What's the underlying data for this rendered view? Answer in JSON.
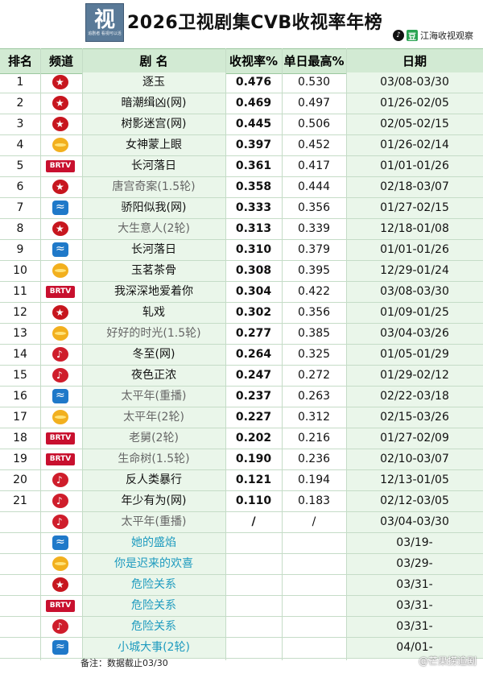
{
  "header": {
    "title": "2026卫视剧集CVB收视率年榜",
    "logo_glyph": "视",
    "logo_sub": "追剧者 看视可以活",
    "brand": "江海收视观察",
    "brand_tiktok_icon": "tiktok-icon",
    "brand_douban_icon": "douban-icon",
    "brand_douban_glyph": "豆"
  },
  "columns": {
    "rank": "排名",
    "channel": "频道",
    "title": "剧  名",
    "rate": "收视率%",
    "peak": "单日最高%",
    "date": "日期"
  },
  "rows": [
    {
      "rank": "1",
      "channel": "dragon-tv",
      "title": "逐玉",
      "style": "normal",
      "rate": "0.476",
      "peak": "0.530",
      "date": "03/08-03/30"
    },
    {
      "rank": "2",
      "channel": "dragon-tv",
      "title": "暗潮缉凶(网)",
      "style": "normal",
      "rate": "0.469",
      "peak": "0.497",
      "date": "01/26-02/05"
    },
    {
      "rank": "3",
      "channel": "dragon-tv",
      "title": "树影迷宫(网)",
      "style": "normal",
      "rate": "0.445",
      "peak": "0.506",
      "date": "02/05-02/15"
    },
    {
      "rank": "4",
      "channel": "hunan-tv",
      "title": "女神蒙上眼",
      "style": "normal",
      "rate": "0.397",
      "peak": "0.452",
      "date": "01/26-02/14"
    },
    {
      "rank": "5",
      "channel": "btv",
      "title": "长河落日",
      "style": "normal",
      "rate": "0.361",
      "peak": "0.417",
      "date": "01/01-01/26"
    },
    {
      "rank": "6",
      "channel": "dragon-tv",
      "title": "唐宫奇案(1.5轮)",
      "style": "muted",
      "rate": "0.358",
      "peak": "0.444",
      "date": "02/18-03/07"
    },
    {
      "rank": "7",
      "channel": "zhejiang-tv",
      "title": "骄阳似我(网)",
      "style": "normal",
      "rate": "0.333",
      "peak": "0.356",
      "date": "01/27-02/15"
    },
    {
      "rank": "8",
      "channel": "dragon-tv",
      "title": "大生意人(2轮)",
      "style": "muted",
      "rate": "0.313",
      "peak": "0.339",
      "date": "12/18-01/08"
    },
    {
      "rank": "9",
      "channel": "zhejiang-tv",
      "title": "长河落日",
      "style": "normal",
      "rate": "0.310",
      "peak": "0.379",
      "date": "01/01-01/26"
    },
    {
      "rank": "10",
      "channel": "hunan-tv",
      "title": "玉茗茶骨",
      "style": "normal",
      "rate": "0.308",
      "peak": "0.395",
      "date": "12/29-01/24"
    },
    {
      "rank": "11",
      "channel": "btv",
      "title": "我深深地爱着你",
      "style": "normal",
      "rate": "0.304",
      "peak": "0.422",
      "date": "03/08-03/30"
    },
    {
      "rank": "12",
      "channel": "dragon-tv",
      "title": "轧戏",
      "style": "normal",
      "rate": "0.302",
      "peak": "0.356",
      "date": "01/09-01/25"
    },
    {
      "rank": "13",
      "channel": "hunan-tv",
      "title": "好好的时光(1.5轮)",
      "style": "muted",
      "rate": "0.277",
      "peak": "0.385",
      "date": "03/04-03/26"
    },
    {
      "rank": "14",
      "channel": "jiangsu-tv",
      "title": "冬至(网)",
      "style": "normal",
      "rate": "0.264",
      "peak": "0.325",
      "date": "01/05-01/29"
    },
    {
      "rank": "15",
      "channel": "jiangsu-tv",
      "title": "夜色正浓",
      "style": "normal",
      "rate": "0.247",
      "peak": "0.272",
      "date": "01/29-02/12"
    },
    {
      "rank": "16",
      "channel": "zhejiang-tv",
      "title": "太平年(重播)",
      "style": "muted",
      "rate": "0.237",
      "peak": "0.263",
      "date": "02/22-03/18"
    },
    {
      "rank": "17",
      "channel": "hunan-tv",
      "title": "太平年(2轮)",
      "style": "muted",
      "rate": "0.227",
      "peak": "0.312",
      "date": "02/15-03/26"
    },
    {
      "rank": "18",
      "channel": "btv",
      "title": "老舅(2轮)",
      "style": "muted",
      "rate": "0.202",
      "peak": "0.216",
      "date": "01/27-02/09"
    },
    {
      "rank": "19",
      "channel": "btv",
      "title": "生命树(1.5轮)",
      "style": "muted",
      "rate": "0.190",
      "peak": "0.236",
      "date": "02/10-03/07"
    },
    {
      "rank": "20",
      "channel": "jiangsu-tv",
      "title": "反人类暴行",
      "style": "normal",
      "rate": "0.121",
      "peak": "0.194",
      "date": "12/13-01/05"
    },
    {
      "rank": "21",
      "channel": "jiangsu-tv",
      "title": "年少有为(网)",
      "style": "normal",
      "rate": "0.110",
      "peak": "0.183",
      "date": "02/12-03/05"
    },
    {
      "rank": "",
      "channel": "jiangsu-tv",
      "title": "太平年(重播)",
      "style": "muted",
      "rate": "/",
      "peak": "/",
      "date": "03/04-03/30"
    },
    {
      "rank": "",
      "channel": "zhejiang-tv",
      "title": "她的盛焰",
      "style": "upcoming",
      "rate": "",
      "peak": "",
      "date": "03/19-"
    },
    {
      "rank": "",
      "channel": "hunan-tv",
      "title": "你是迟来的欢喜",
      "style": "upcoming",
      "rate": "",
      "peak": "",
      "date": "03/29-"
    },
    {
      "rank": "",
      "channel": "dragon-tv",
      "title": "危险关系",
      "style": "upcoming",
      "rate": "",
      "peak": "",
      "date": "03/31-"
    },
    {
      "rank": "",
      "channel": "btv",
      "title": "危险关系",
      "style": "upcoming",
      "rate": "",
      "peak": "",
      "date": "03/31-"
    },
    {
      "rank": "",
      "channel": "jiangsu-tv",
      "title": "危险关系",
      "style": "upcoming",
      "rate": "",
      "peak": "",
      "date": "03/31-"
    },
    {
      "rank": "",
      "channel": "zhejiang-tv",
      "title": "小城大事(2轮)",
      "style": "upcoming",
      "rate": "",
      "peak": "",
      "date": "04/01-"
    }
  ],
  "footer": {
    "note": "备注：数据截止03/30",
    "watermark": "@芒果捞追剧"
  },
  "colors": {
    "header_bg": "#d2ead3",
    "highlight_col": "#eaf6ea",
    "upcoming_text": "#1e9bbf"
  }
}
